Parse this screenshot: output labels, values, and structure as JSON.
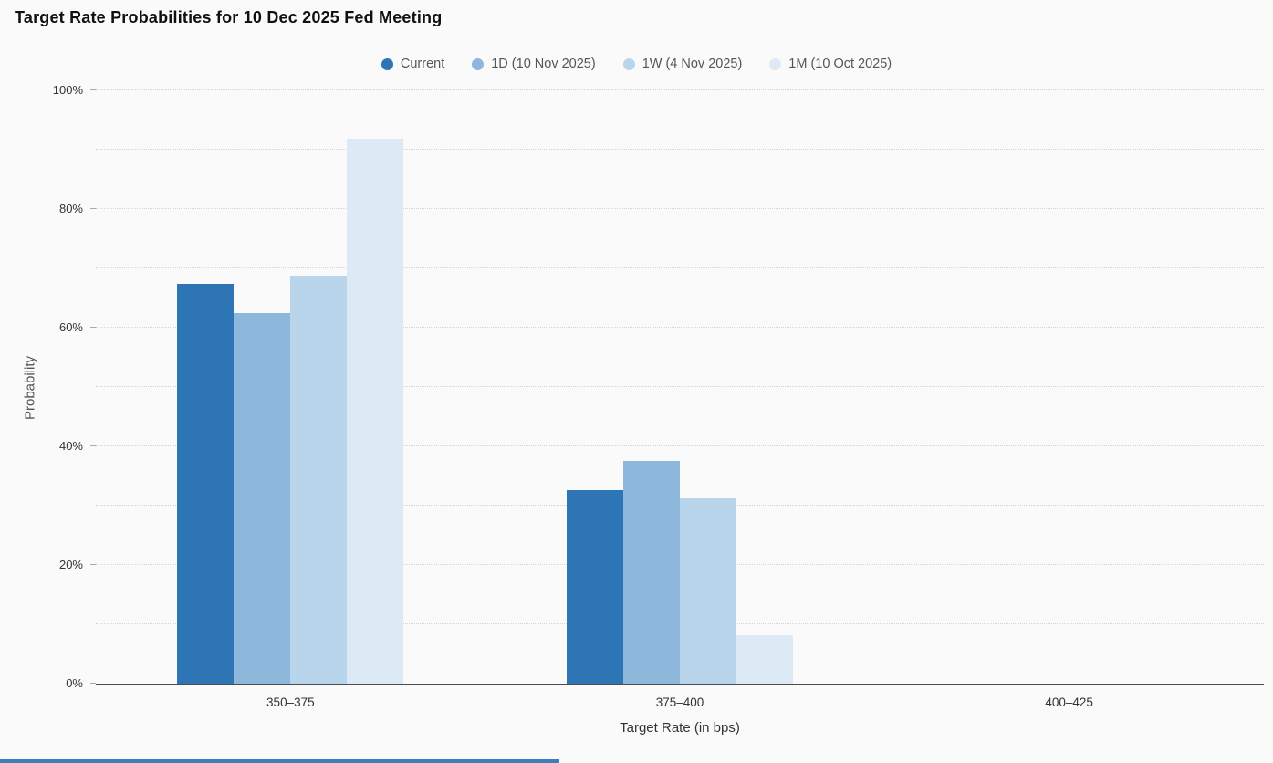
{
  "page": {
    "title": "Target Rate Probabilities for 10 Dec 2025 Fed Meeting"
  },
  "chart_data": {
    "type": "bar",
    "title": "Target Rate Probabilities for 10 Dec 2025 Fed Meeting",
    "xlabel": "Target Rate (in bps)",
    "ylabel": "Probability",
    "categories": [
      "350–375",
      "375–400",
      "400–425"
    ],
    "series": [
      {
        "name": "Current",
        "color": "#2e75b6",
        "values": [
          67.4,
          32.6,
          0
        ]
      },
      {
        "name": "1D (10 Nov 2025)",
        "color": "#8eb7dc",
        "values": [
          62.5,
          37.5,
          0
        ]
      },
      {
        "name": "1W (4 Nov 2025)",
        "color": "#b9d5ec",
        "values": [
          68.7,
          31.3,
          0
        ]
      },
      {
        "name": "1M (10 Oct 2025)",
        "color": "#dde9f5",
        "values": [
          91.8,
          8.2,
          0
        ]
      }
    ],
    "ylim": [
      0,
      100
    ],
    "yticks": [
      0,
      20,
      40,
      60,
      80,
      100
    ],
    "ytick_labels": [
      "0%",
      "20%",
      "40%",
      "60%",
      "80%",
      "100%"
    ],
    "gridline_step_percent": 10,
    "grid": "horizontal-dotted",
    "legend_position": "top-center",
    "accent_bar_color": "#3d7ebf"
  }
}
